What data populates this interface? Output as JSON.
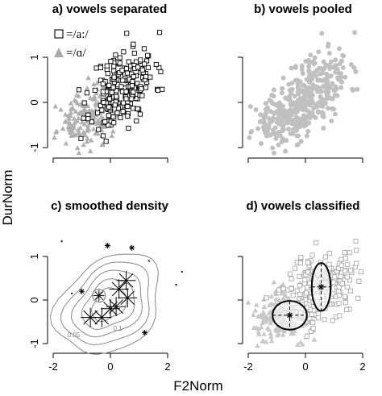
{
  "figure": {
    "ylabel": "DurNorm",
    "xlabel": "F2Norm"
  },
  "chart_data": [
    {
      "panel": "a",
      "type": "scatter",
      "title": "a) vowels separated",
      "xlim": [
        -2,
        2.6
      ],
      "ylim": [
        -1.2,
        1.8
      ],
      "x_ticks": [
        "-2",
        "0",
        "2"
      ],
      "y_ticks": [
        "-1",
        "0",
        "1"
      ],
      "show_x_tick_labels": false,
      "show_y_tick_labels": true,
      "legend": {
        "placement": "top-left",
        "entries": [
          {
            "symbol": "open-square",
            "label": "=/a:/"
          },
          {
            "symbol": "filled-triangle",
            "label": "=/ɑ/"
          }
        ]
      },
      "series": [
        {
          "name": "/a:/",
          "marker": "open-square",
          "color": "#000000",
          "points": []
        },
        {
          "name": "/ɑ/",
          "marker": "filled-triangle",
          "color": "#b0b0b0",
          "points": []
        }
      ]
    },
    {
      "panel": "b",
      "type": "scatter",
      "title": "b) vowels pooled",
      "xlim": [
        -2,
        2.6
      ],
      "ylim": [
        -1.2,
        1.8
      ],
      "x_ticks": [
        "-2",
        "0",
        "2"
      ],
      "y_ticks": [
        "-1",
        "0",
        "1"
      ],
      "show_x_tick_labels": false,
      "show_y_tick_labels": false,
      "series": [
        {
          "marker": "filled-circle",
          "color": "#c0c0c0",
          "points": []
        }
      ]
    },
    {
      "panel": "c",
      "type": "contour",
      "title": "c) smoothed density",
      "xlim": [
        -2,
        2.6
      ],
      "ylim": [
        -1.2,
        1.8
      ],
      "x_ticks": [
        "-2",
        "0",
        "2"
      ],
      "y_ticks": [
        "-1",
        "0",
        "1"
      ],
      "show_x_tick_labels": true,
      "show_y_tick_labels": true,
      "contour_labels": [
        {
          "text": "0.05"
        },
        {
          "text": "0.1"
        }
      ],
      "clusters": [
        {
          "x": -0.7,
          "y": -0.4,
          "size": "large"
        },
        {
          "x": -0.3,
          "y": -0.4,
          "size": "large"
        },
        {
          "x": 0.0,
          "y": -0.2,
          "size": "large"
        },
        {
          "x": 0.2,
          "y": -0.15,
          "size": "large"
        },
        {
          "x": 0.3,
          "y": 0.25,
          "size": "large"
        },
        {
          "x": 0.55,
          "y": 0.45,
          "size": "large"
        },
        {
          "x": 0.6,
          "y": 0.05,
          "size": "large"
        },
        {
          "x": -0.4,
          "y": 0.1,
          "size": "medium"
        },
        {
          "x": -1.0,
          "y": 0.2,
          "size": "small"
        },
        {
          "x": 0.75,
          "y": 1.2,
          "size": "small"
        },
        {
          "x": 1.2,
          "y": -0.75,
          "size": "small"
        },
        {
          "x": -0.1,
          "y": 1.25,
          "size": "small"
        }
      ]
    },
    {
      "panel": "d",
      "type": "scatter",
      "title": "d) vowels classified",
      "xlim": [
        -2,
        2.6
      ],
      "ylim": [
        -1.2,
        1.8
      ],
      "x_ticks": [
        "-2",
        "0",
        "2"
      ],
      "y_ticks": [
        "-1",
        "0",
        "1"
      ],
      "show_x_tick_labels": true,
      "show_y_tick_labels": false,
      "series": [
        {
          "marker": "open-square",
          "color": "#a8a8a8",
          "points": []
        },
        {
          "marker": "filled-triangle",
          "color": "#c8c8c8",
          "points": []
        }
      ],
      "ellipses": [
        {
          "cx": -0.55,
          "cy": -0.35,
          "rx": 0.6,
          "ry": 0.33
        },
        {
          "cx": 0.55,
          "cy": 0.3,
          "rx": 0.33,
          "ry": 0.55
        }
      ]
    }
  ]
}
